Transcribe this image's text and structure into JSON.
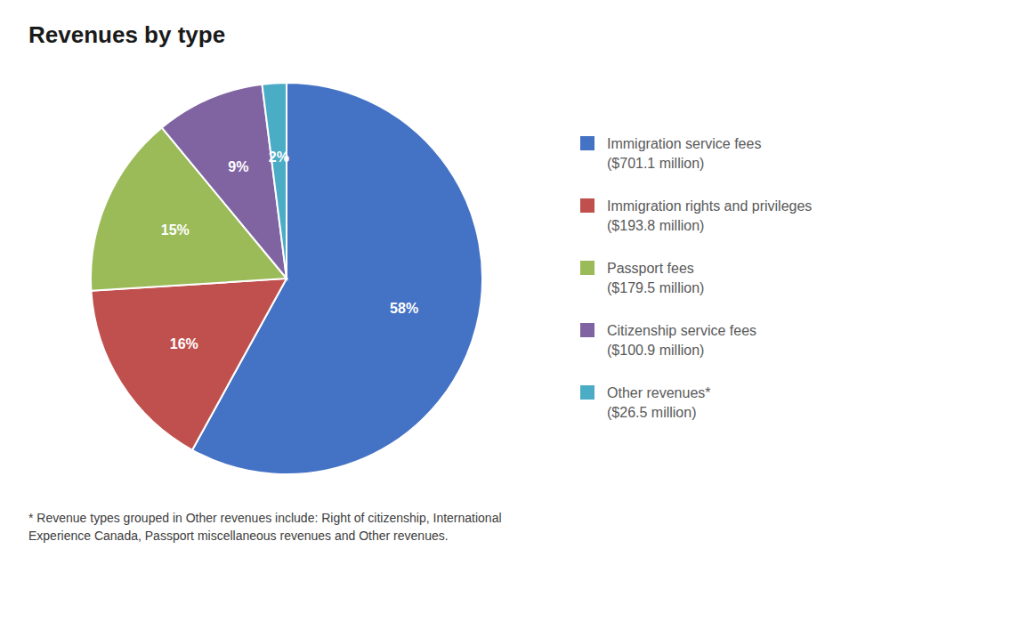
{
  "chart_data": {
    "type": "pie",
    "title": "Revenues by type",
    "categories": [
      "Immigration service fees\n($701.1 million)",
      "Immigration rights and privileges\n($193.8 million)",
      "Passport fees\n($179.5 million)",
      "Citizenship service fees\n($100.9 million)",
      "Other revenues*\n($26.5 million)"
    ],
    "values": [
      58,
      16,
      15,
      9,
      2
    ],
    "value_labels": [
      "58%",
      "16%",
      "15%",
      "9%",
      "2%"
    ],
    "data_labels": true,
    "colors": [
      "#4472C4",
      "#C0504D",
      "#9BBB59",
      "#8064A2",
      "#4BACC6"
    ],
    "legend": "right",
    "annotations": [
      "* Revenue types grouped in Other revenues include: Right of citizenship, International\nExperience Canada, Passport miscellaneous revenues and Other revenues."
    ]
  }
}
